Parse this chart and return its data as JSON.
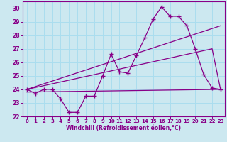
{
  "xlabel": "Windchill (Refroidissement éolien,°C)",
  "xlim": [
    -0.5,
    23.5
  ],
  "ylim": [
    22,
    30.5
  ],
  "yticks": [
    22,
    23,
    24,
    25,
    26,
    27,
    28,
    29,
    30
  ],
  "xticks": [
    0,
    1,
    2,
    3,
    4,
    5,
    6,
    7,
    8,
    9,
    10,
    11,
    12,
    13,
    14,
    15,
    16,
    17,
    18,
    19,
    20,
    21,
    22,
    23
  ],
  "bg_color": "#cce8f0",
  "line_color": "#880088",
  "grid_color": "#aaddee",
  "series1_x": [
    0,
    1,
    2,
    3,
    4,
    5,
    6,
    7,
    8,
    9,
    10,
    11,
    12,
    13,
    14,
    15,
    16,
    17,
    18,
    19,
    20,
    21,
    22,
    23
  ],
  "series1_y": [
    24.0,
    23.7,
    24.0,
    24.0,
    23.3,
    22.3,
    22.3,
    23.5,
    23.5,
    25.0,
    26.6,
    25.3,
    25.2,
    26.5,
    27.8,
    29.2,
    30.1,
    29.4,
    29.4,
    28.7,
    27.0,
    25.1,
    24.1,
    24.0
  ],
  "series2_x": [
    0,
    22,
    23
  ],
  "series2_y": [
    24.0,
    27.0,
    24.0
  ],
  "series3_x": [
    0,
    23
  ],
  "series3_y": [
    23.8,
    24.0
  ]
}
